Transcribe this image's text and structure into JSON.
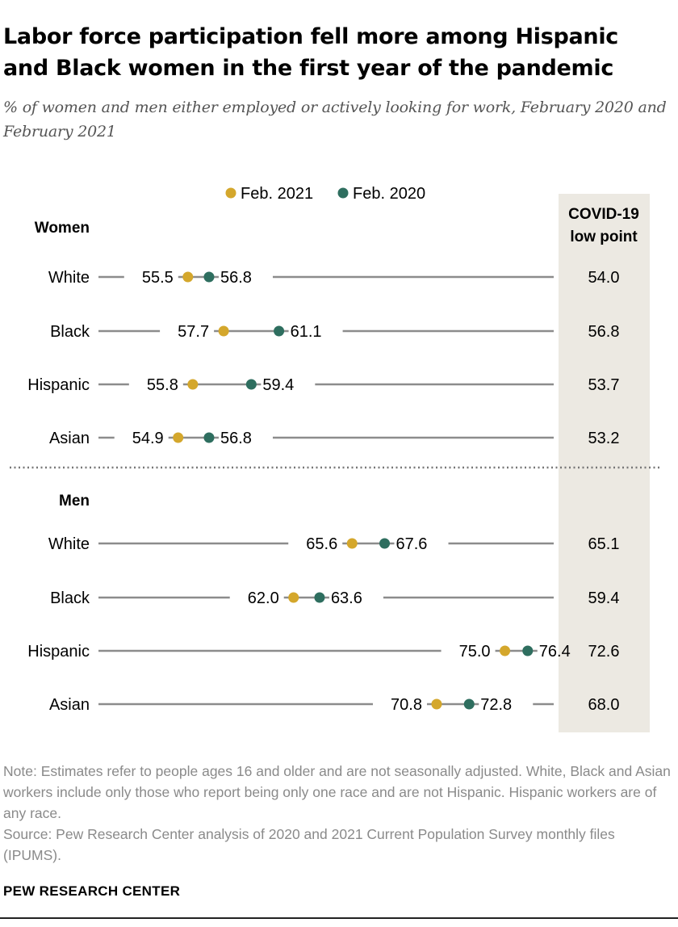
{
  "title": "Labor force participation fell more among Hispanic and Black women in the first year of the pandemic",
  "subtitle": "% of women and men either employed or actively looking for work, February 2020 and February 2021",
  "note": "Note: Estimates refer to people ages 16 and older and are not seasonally adjusted. White, Black and Asian workers include only those who report being only one race and are not Hispanic. Hispanic workers are of any race.",
  "source": "Source: Pew Research Center analysis of 2020 and 2021 Current Population Survey monthly files (IPUMS).",
  "brand": "PEW RESEARCH CENTER",
  "colors": {
    "feb2021": "#d4a72c",
    "feb2020": "#2e6e5f",
    "line": "#8c8c8c",
    "column": "#ece9e2"
  },
  "chart_data": {
    "type": "dot-plot",
    "legend": [
      {
        "name": "Feb. 2021",
        "color": "#d4a72c"
      },
      {
        "name": "Feb. 2020",
        "color": "#2e6e5f"
      }
    ],
    "column_header": [
      "COVID-19",
      "low point"
    ],
    "xlim": [
      50,
      78
    ],
    "groups": [
      {
        "name": "Women",
        "rows": [
          {
            "category": "White",
            "feb2021": 55.5,
            "feb2020": 56.8,
            "low_point": "54.0"
          },
          {
            "category": "Black",
            "feb2021": 57.7,
            "feb2020": 61.1,
            "low_point": "56.8"
          },
          {
            "category": "Hispanic",
            "feb2021": 55.8,
            "feb2020": 59.4,
            "low_point": "53.7"
          },
          {
            "category": "Asian",
            "feb2021": 54.9,
            "feb2020": 56.8,
            "low_point": "53.2"
          }
        ]
      },
      {
        "name": "Men",
        "rows": [
          {
            "category": "White",
            "feb2021": 65.6,
            "feb2020": 67.6,
            "low_point": "65.1"
          },
          {
            "category": "Black",
            "feb2021": 62.0,
            "feb2020": 63.6,
            "low_point": "59.4"
          },
          {
            "category": "Hispanic",
            "feb2021": 75.0,
            "feb2020": 76.4,
            "low_point": "72.6"
          },
          {
            "category": "Asian",
            "feb2021": 70.8,
            "feb2020": 72.8,
            "low_point": "68.0"
          }
        ]
      }
    ]
  }
}
